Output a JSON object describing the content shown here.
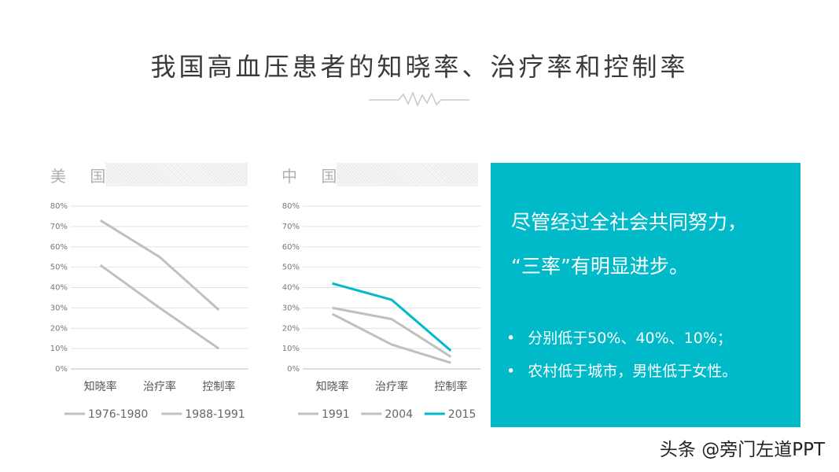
{
  "title": "我国高血压患者的知晓率、治疗率和控制率",
  "us_label": "美 国",
  "cn_label": "中 国",
  "info": {
    "line1": "尽管经过全社会共同努力，",
    "line2": "“三率”有明显进步。",
    "bullets": [
      "分别低于50%、40%、10%；",
      "农村低于城市，男性低于女性。"
    ]
  },
  "watermark": "头条 @旁门左道PPT",
  "colors": {
    "accent": "#00b9c9",
    "gray_series": "#c0c0c0"
  },
  "chart_data": [
    {
      "type": "line",
      "categories": [
        "知晓率",
        "治疗率",
        "控制率"
      ],
      "ylim": [
        0,
        80
      ],
      "yticks": [
        "0%",
        "10%",
        "20%",
        "30%",
        "40%",
        "50%",
        "60%",
        "70%",
        "80%"
      ],
      "legend": "bottom",
      "series": [
        {
          "name": "1976-1980",
          "values": [
            51,
            30,
            10
          ],
          "color": "#c0c0c0"
        },
        {
          "name": "1988-1991",
          "values": [
            73,
            55,
            29
          ],
          "color": "#c0c0c0"
        }
      ]
    },
    {
      "type": "line",
      "categories": [
        "知晓率",
        "治疗率",
        "控制率"
      ],
      "ylim": [
        0,
        80
      ],
      "yticks": [
        "0%",
        "10%",
        "20%",
        "30%",
        "40%",
        "50%",
        "60%",
        "70%",
        "80%"
      ],
      "legend": "bottom",
      "series": [
        {
          "name": "1991",
          "values": [
            27,
            12,
            3
          ],
          "color": "#c0c0c0"
        },
        {
          "name": "2004",
          "values": [
            30,
            24.5,
            6
          ],
          "color": "#c0c0c0"
        },
        {
          "name": "2015",
          "values": [
            42,
            34,
            9
          ],
          "color": "#00b9c9"
        }
      ]
    }
  ]
}
